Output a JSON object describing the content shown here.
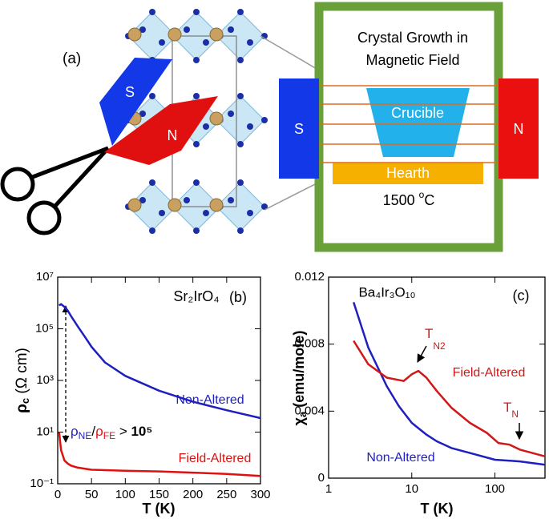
{
  "diagram": {
    "panel_label": "(a)",
    "scissors_south": "S",
    "scissors_north": "N",
    "title_line1": "Crystal Growth in",
    "title_line2": "Magnetic Field",
    "magnet_south": "S",
    "magnet_north": "N",
    "crucible": "Crucible",
    "hearth": "Hearth",
    "temperature": "1500 ",
    "temperature_sup": "o",
    "temperature_unit": "C"
  },
  "chart_data": [
    {
      "type": "line",
      "panel_label": "(b)",
      "title": "Sr₂IrO₄",
      "x_label": "T (K)",
      "y_label": "ρ",
      "y_label_sub": "c",
      "y_label_unit": " (Ω cm)",
      "xscale": "linear",
      "yscale": "log",
      "xlim": [
        0,
        300
      ],
      "xticks": [
        0,
        50,
        100,
        150,
        200,
        250,
        300
      ],
      "ylim": [
        0.1,
        10000000
      ],
      "yticks": [
        {
          "value": 0.1,
          "label": "10⁻¹"
        },
        {
          "value": 10,
          "label": "10¹"
        },
        {
          "value": 1000,
          "label": "10³"
        },
        {
          "value": 100000,
          "label": "10⁵"
        },
        {
          "value": 10000000,
          "label": "10⁷"
        }
      ],
      "annotation": {
        "rho_ne": "ρ",
        "ne": "NE",
        "slash": "/",
        "rho_fe": "ρ",
        "fe": "FE",
        "gt": " > ",
        "power": "10⁵"
      },
      "series": [
        {
          "name": "Non-Altered",
          "color": "#1f1fbf",
          "x": [
            2,
            5,
            10,
            15,
            20,
            30,
            40,
            50,
            70,
            100,
            150,
            200,
            250,
            300
          ],
          "values": [
            800000,
            900000,
            700000,
            500000,
            300000,
            120000,
            50000,
            20000,
            5000,
            1500,
            400,
            150,
            70,
            35
          ]
        },
        {
          "name": "Field-Altered",
          "color": "#e01010",
          "x": [
            2,
            5,
            10,
            15,
            20,
            30,
            50,
            100,
            150,
            200,
            250,
            300
          ],
          "values": [
            10,
            2,
            0.8,
            0.6,
            0.5,
            0.42,
            0.35,
            0.32,
            0.3,
            0.27,
            0.24,
            0.2
          ]
        }
      ]
    },
    {
      "type": "line",
      "panel_label": "(c)",
      "title": "Ba₄Ir₃O₁₀",
      "x_label": "T (K)",
      "y_label": "χ",
      "y_label_sub": "a",
      "y_label_unit": " (emu/mole)",
      "xscale": "log",
      "yscale": "linear",
      "xlim": [
        1,
        400
      ],
      "xticks": [
        1,
        10,
        100
      ],
      "ylim": [
        0,
        0.012
      ],
      "yticks": [
        0,
        0.004,
        0.008,
        0.012
      ],
      "annotations": {
        "tn2": "T",
        "tn2_sub": "N2",
        "tn": "T",
        "tn_sub": "N"
      },
      "series": [
        {
          "name": "Non-Altered",
          "color": "#1f1fbf",
          "x": [
            2,
            3,
            5,
            7,
            10,
            15,
            20,
            30,
            50,
            100,
            200,
            400
          ],
          "values": [
            0.0105,
            0.0078,
            0.0055,
            0.0043,
            0.0033,
            0.0026,
            0.0022,
            0.0018,
            0.0015,
            0.0011,
            0.001,
            0.0008
          ]
        },
        {
          "name": "Field-Altered",
          "color": "#d01818",
          "x": [
            2,
            3,
            5,
            8,
            10,
            12,
            15,
            20,
            30,
            50,
            80,
            110,
            150,
            200,
            400
          ],
          "values": [
            0.0082,
            0.0068,
            0.006,
            0.0058,
            0.0062,
            0.0064,
            0.006,
            0.0052,
            0.0042,
            0.0033,
            0.0027,
            0.0021,
            0.002,
            0.0017,
            0.0013
          ]
        }
      ]
    }
  ]
}
